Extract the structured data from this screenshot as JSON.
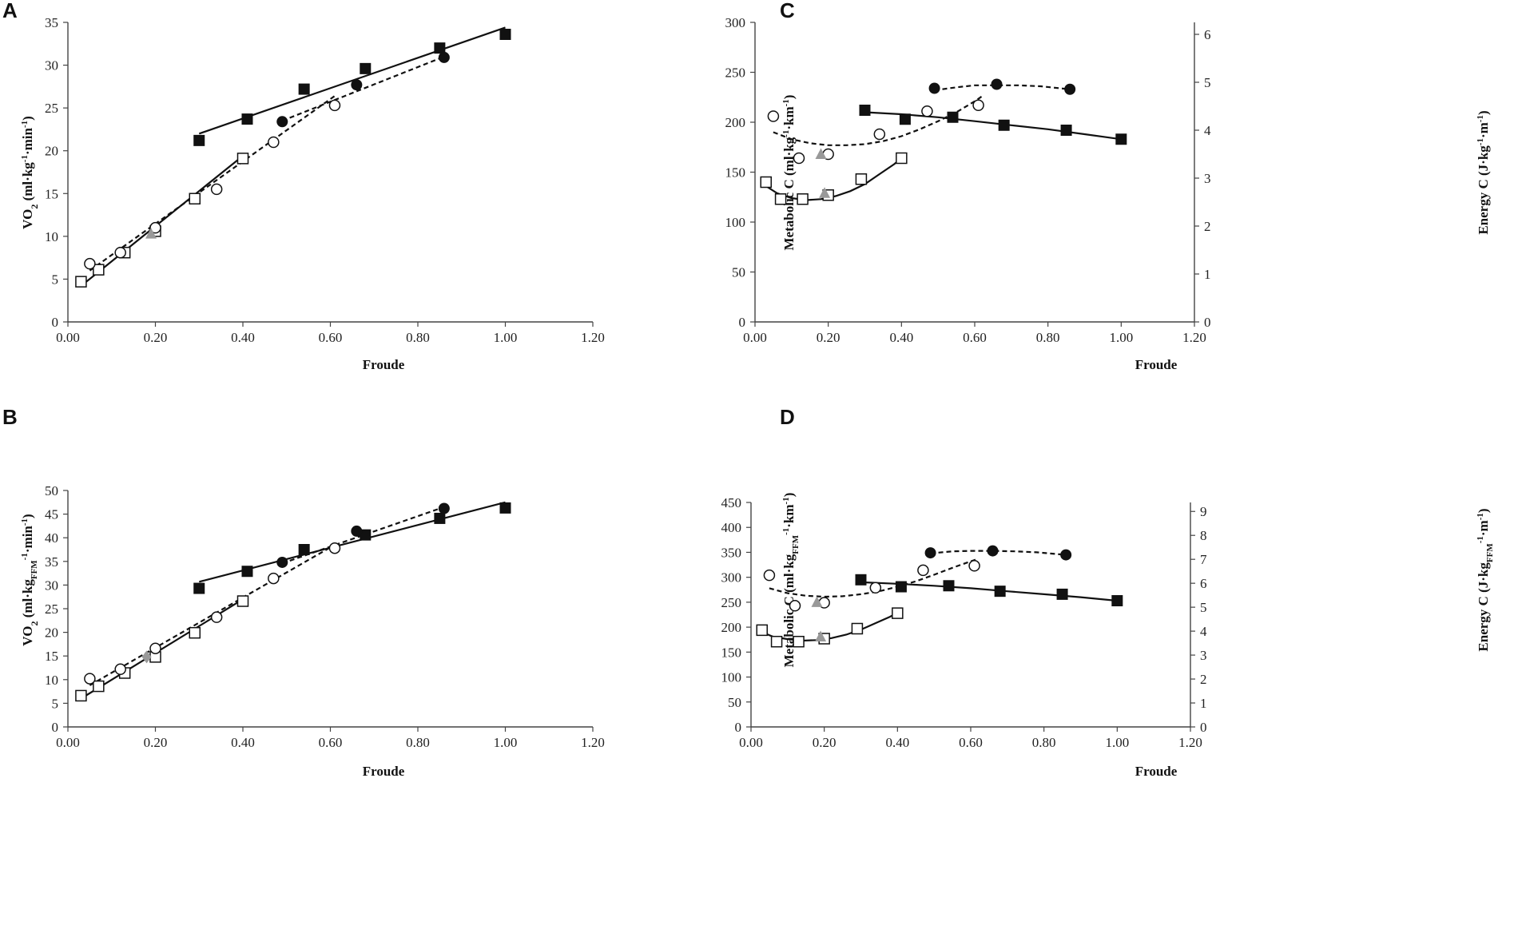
{
  "figure": {
    "colors": {
      "ink": "#111111",
      "axis": "#444444",
      "gray_marker": "#999999"
    }
  },
  "chart_data": [
    {
      "panel": "A",
      "type": "scatter",
      "xlabel": "Froude",
      "ylabel": {
        "base": "VO",
        "sub": "2",
        "units": " (ml·kg",
        "sup1": "-1",
        "mid": "·min",
        "sup2": "-1",
        "close": ")"
      },
      "xlim": [
        0,
        1.2
      ],
      "ylim": [
        0,
        35
      ],
      "xticks": [
        "0.00",
        "0.20",
        "0.40",
        "0.60",
        "0.80",
        "1.00",
        "1.20"
      ],
      "yticks": [
        "0",
        "5",
        "10",
        "15",
        "20",
        "25",
        "30",
        "35"
      ],
      "series": [
        {
          "name": "open-square",
          "marker": "open-square",
          "points": [
            [
              0.03,
              4.7
            ],
            [
              0.07,
              6.1
            ],
            [
              0.13,
              8.1
            ],
            [
              0.2,
              10.6
            ],
            [
              0.29,
              14.4
            ],
            [
              0.4,
              19.1
            ]
          ],
          "fit": {
            "style": "solid",
            "x": [
              0.03,
              0.4
            ],
            "y": [
              4.2,
              19.4
            ]
          }
        },
        {
          "name": "open-circle",
          "marker": "open-circle",
          "points": [
            [
              0.05,
              6.8
            ],
            [
              0.12,
              8.1
            ],
            [
              0.2,
              11.0
            ],
            [
              0.34,
              15.5
            ],
            [
              0.47,
              21.0
            ],
            [
              0.61,
              25.3
            ]
          ],
          "fit": {
            "style": "dashed",
            "x": [
              0.05,
              0.61
            ],
            "y": [
              6.0,
              26.4
            ]
          }
        },
        {
          "name": "gray-triangle",
          "marker": "gray-triangle",
          "points": [
            [
              0.19,
              10.3
            ]
          ]
        },
        {
          "name": "filled-square",
          "marker": "filled-square",
          "points": [
            [
              0.3,
              21.2
            ],
            [
              0.41,
              23.7
            ],
            [
              0.54,
              27.2
            ],
            [
              0.68,
              29.6
            ],
            [
              0.85,
              32.0
            ],
            [
              1.0,
              33.6
            ]
          ],
          "fit": {
            "style": "solid",
            "x": [
              0.3,
              1.0
            ],
            "y": [
              22.0,
              34.4
            ]
          }
        },
        {
          "name": "filled-circle",
          "marker": "filled-circle",
          "points": [
            [
              0.49,
              23.4
            ],
            [
              0.66,
              27.7
            ],
            [
              0.86,
              30.9
            ]
          ],
          "fit": {
            "style": "dashed",
            "x": [
              0.49,
              0.86
            ],
            "y": [
              23.5,
              31.0
            ]
          }
        }
      ]
    },
    {
      "panel": "B",
      "type": "scatter",
      "xlabel": "Froude",
      "ylabel": {
        "base": "VO",
        "sub": "2",
        "units": " (ml·kg",
        "sub2": "FFM",
        "sup1": "-1",
        "mid": "·min",
        "sup2": "-1",
        "close": ")"
      },
      "xlim": [
        0,
        1.2
      ],
      "ylim": [
        0,
        50
      ],
      "xticks": [
        "0.00",
        "0.20",
        "0.40",
        "0.60",
        "0.80",
        "1.00",
        "1.20"
      ],
      "yticks": [
        "0",
        "5",
        "10",
        "15",
        "20",
        "25",
        "30",
        "35",
        "40",
        "45",
        "50"
      ],
      "series": [
        {
          "name": "open-square",
          "marker": "open-square",
          "points": [
            [
              0.03,
              6.6
            ],
            [
              0.07,
              8.6
            ],
            [
              0.13,
              11.4
            ],
            [
              0.2,
              14.8
            ],
            [
              0.29,
              19.9
            ],
            [
              0.4,
              26.6
            ]
          ],
          "fit": {
            "style": "solid",
            "x": [
              0.03,
              0.4
            ],
            "y": [
              6.0,
              27.0
            ]
          }
        },
        {
          "name": "open-circle",
          "marker": "open-circle",
          "points": [
            [
              0.05,
              10.2
            ],
            [
              0.12,
              12.2
            ],
            [
              0.2,
              16.6
            ],
            [
              0.34,
              23.2
            ],
            [
              0.47,
              31.4
            ],
            [
              0.61,
              37.8
            ]
          ],
          "fit": {
            "style": "dashed",
            "x": [
              0.05,
              0.61
            ],
            "y": [
              8.8,
              38.5
            ]
          }
        },
        {
          "name": "gray-diamond",
          "marker": "gray-diamond",
          "points": [
            [
              0.18,
              14.8
            ]
          ]
        },
        {
          "name": "filled-square",
          "marker": "filled-square",
          "points": [
            [
              0.3,
              29.3
            ],
            [
              0.41,
              32.9
            ],
            [
              0.54,
              37.5
            ],
            [
              0.68,
              40.6
            ],
            [
              0.85,
              44.1
            ],
            [
              1.0,
              46.3
            ]
          ],
          "fit": {
            "style": "solid",
            "x": [
              0.3,
              1.0
            ],
            "y": [
              30.7,
              47.5
            ]
          }
        },
        {
          "name": "filled-circle",
          "marker": "filled-circle",
          "points": [
            [
              0.49,
              34.8
            ],
            [
              0.66,
              41.4
            ],
            [
              0.86,
              46.2
            ]
          ],
          "fit": {
            "style": "dashed",
            "x": [
              0.49,
              0.86
            ],
            "y": [
              34.6,
              46.5
            ]
          }
        }
      ]
    },
    {
      "panel": "C",
      "type": "scatter",
      "xlabel": "Froude",
      "ylabel": {
        "base": "Metabolic C",
        "units": " (ml·kg",
        "sup1": "-1",
        "mid": "·km",
        "sup2": "-1",
        "close": ")"
      },
      "ylabel2": {
        "base": "Energy C",
        "units": " (J·kg",
        "sup1": "-1",
        "mid": "·m",
        "sup2": "-1",
        "close": ")"
      },
      "xlim": [
        0,
        1.2
      ],
      "ylim": [
        0,
        300
      ],
      "y2lim": [
        0,
        6.25
      ],
      "xticks": [
        "0.00",
        "0.20",
        "0.40",
        "0.60",
        "0.80",
        "1.00",
        "1.20"
      ],
      "yticks": [
        "0",
        "50",
        "100",
        "150",
        "200",
        "250",
        "300"
      ],
      "y2ticks": [
        "0",
        "1",
        "2",
        "3",
        "4",
        "5",
        "6"
      ],
      "series": [
        {
          "name": "open-square",
          "marker": "open-square",
          "points": [
            [
              0.03,
              140
            ],
            [
              0.07,
              123
            ],
            [
              0.13,
              123
            ],
            [
              0.2,
              127
            ],
            [
              0.29,
              143
            ],
            [
              0.4,
              164
            ]
          ],
          "fit": {
            "style": "solid",
            "x": [
              0.03,
              0.06,
              0.1,
              0.14,
              0.18,
              0.22,
              0.26,
              0.3,
              0.34,
              0.38,
              0.4
            ],
            "y": [
              136,
              129,
              124,
              122,
              123,
              126,
              131,
              138,
              148,
              158,
              164
            ]
          }
        },
        {
          "name": "open-circle",
          "marker": "open-circle",
          "points": [
            [
              0.05,
              206
            ],
            [
              0.12,
              164
            ],
            [
              0.2,
              168
            ],
            [
              0.34,
              188
            ],
            [
              0.47,
              211
            ],
            [
              0.61,
              217
            ]
          ],
          "fit": {
            "style": "dashed",
            "x": [
              0.05,
              0.1,
              0.15,
              0.2,
              0.25,
              0.3,
              0.35,
              0.4,
              0.45,
              0.5,
              0.55,
              0.6,
              0.62
            ],
            "y": [
              190,
              183,
              179,
              177,
              177,
              178,
              181,
              186,
              193,
              201,
              210,
              221,
              226
            ]
          }
        },
        {
          "name": "gray-triangle",
          "marker": "gray-triangle",
          "points": [
            [
              0.18,
              168
            ],
            [
              0.19,
              129
            ]
          ]
        },
        {
          "name": "filled-square",
          "marker": "filled-square",
          "points": [
            [
              0.3,
              212
            ],
            [
              0.41,
              203
            ],
            [
              0.54,
              205
            ],
            [
              0.68,
              197
            ],
            [
              0.85,
              192
            ],
            [
              1.0,
              183
            ]
          ],
          "fit": {
            "style": "solid",
            "x": [
              0.3,
              0.4,
              0.5,
              0.6,
              0.7,
              0.8,
              0.9,
              1.0
            ],
            "y": [
              210,
              208,
              205,
              201,
              197,
              193,
              188,
              183
            ]
          }
        },
        {
          "name": "filled-circle",
          "marker": "filled-circle",
          "points": [
            [
              0.49,
              234
            ],
            [
              0.66,
              238
            ],
            [
              0.86,
              233
            ]
          ],
          "fit": {
            "style": "dashed",
            "x": [
              0.49,
              0.55,
              0.6,
              0.66,
              0.72,
              0.78,
              0.86
            ],
            "y": [
              232,
              235,
              237,
              237,
              237,
              236,
              233
            ]
          }
        }
      ]
    },
    {
      "panel": "D",
      "type": "scatter",
      "xlabel": "Froude",
      "ylabel": {
        "base": "Metabolic C",
        "units": " (ml·kg",
        "sub2": "FFM",
        "sup1": "-1",
        "mid": "·km",
        "sup2": "-1",
        "close": ")"
      },
      "ylabel2": {
        "base": "Energy C",
        "units": " (J·kg",
        "sub2": "FFM",
        "sup1": "-1",
        "mid": "·m",
        "sup2": "-1",
        "close": ")"
      },
      "xlim": [
        0,
        1.2
      ],
      "ylim": [
        0,
        450
      ],
      "y2lim": [
        0,
        9.375
      ],
      "xticks": [
        "0.00",
        "0.20",
        "0.40",
        "0.60",
        "0.80",
        "1.00",
        "1.20"
      ],
      "yticks": [
        "0",
        "50",
        "100",
        "150",
        "200",
        "250",
        "300",
        "350",
        "400",
        "450"
      ],
      "y2ticks": [
        "0",
        "1",
        "2",
        "3",
        "4",
        "5",
        "6",
        "7",
        "8",
        "9"
      ],
      "series": [
        {
          "name": "open-square",
          "marker": "open-square",
          "points": [
            [
              0.03,
              194
            ],
            [
              0.07,
              171
            ],
            [
              0.13,
              171
            ],
            [
              0.2,
              177
            ],
            [
              0.29,
              197
            ],
            [
              0.4,
              228
            ]
          ],
          "fit": {
            "style": "solid",
            "x": [
              0.03,
              0.06,
              0.1,
              0.14,
              0.18,
              0.22,
              0.26,
              0.3,
              0.34,
              0.38,
              0.4
            ],
            "y": [
              190,
              181,
              176,
              173,
              174,
              178,
              185,
              195,
              208,
              221,
              229
            ]
          }
        },
        {
          "name": "open-circle",
          "marker": "open-circle",
          "points": [
            [
              0.05,
              304
            ],
            [
              0.12,
              243
            ],
            [
              0.2,
              249
            ],
            [
              0.34,
              279
            ],
            [
              0.47,
              314
            ],
            [
              0.61,
              323
            ]
          ],
          "fit": {
            "style": "dashed",
            "x": [
              0.05,
              0.1,
              0.15,
              0.2,
              0.25,
              0.3,
              0.35,
              0.4,
              0.45,
              0.5,
              0.55,
              0.6,
              0.62
            ],
            "y": [
              278,
              268,
              263,
              261,
              262,
              266,
              272,
              281,
              292,
              305,
              319,
              332,
              337
            ]
          }
        },
        {
          "name": "gray-triangle",
          "marker": "gray-triangle",
          "points": [
            [
              0.18,
              250
            ],
            [
              0.19,
              181
            ]
          ]
        },
        {
          "name": "filled-square",
          "marker": "filled-square",
          "points": [
            [
              0.3,
              295
            ],
            [
              0.41,
              281
            ],
            [
              0.54,
              283
            ],
            [
              0.68,
              272
            ],
            [
              0.85,
              266
            ],
            [
              1.0,
              253
            ]
          ],
          "fit": {
            "style": "solid",
            "x": [
              0.3,
              0.4,
              0.5,
              0.6,
              0.7,
              0.8,
              0.9,
              1.0
            ],
            "y": [
              290,
              287,
              283,
              278,
              272,
              266,
              260,
              253
            ]
          }
        },
        {
          "name": "filled-circle",
          "marker": "filled-circle",
          "points": [
            [
              0.49,
              349
            ],
            [
              0.66,
              353
            ],
            [
              0.86,
              345
            ]
          ],
          "fit": {
            "style": "dashed",
            "x": [
              0.49,
              0.55,
              0.6,
              0.66,
              0.72,
              0.78,
              0.86
            ],
            "y": [
              348,
              352,
              353,
              353,
              352,
              350,
              345
            ]
          }
        }
      ]
    }
  ]
}
